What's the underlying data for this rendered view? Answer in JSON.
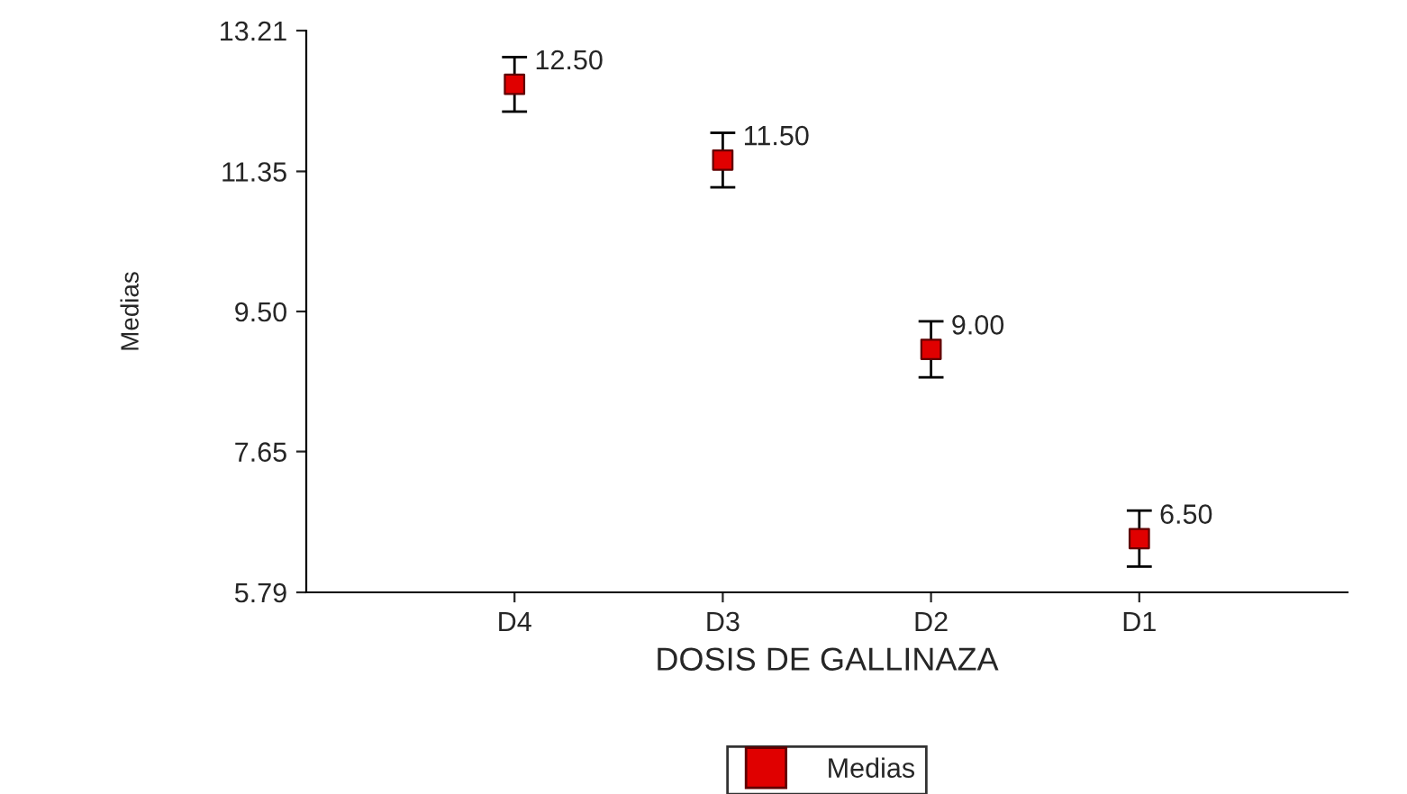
{
  "chart_data": {
    "type": "scatter",
    "xlabel": "DOSIS DE GALLINAZA",
    "ylabel": "Medias",
    "categories": [
      "D4",
      "D3",
      "D2",
      "D1"
    ],
    "series": [
      {
        "name": "Medias",
        "color": "#e00000",
        "values": [
          12.5,
          11.5,
          9.0,
          6.5
        ],
        "errors": [
          0.36,
          0.36,
          0.37,
          0.37
        ],
        "value_labels": [
          "12.50",
          "11.50",
          "9.00",
          "6.50"
        ]
      }
    ],
    "ylim": [
      5.79,
      13.21
    ],
    "yticks": [
      {
        "value": 5.79,
        "label": "5.79"
      },
      {
        "value": 7.65,
        "label": "7.65"
      },
      {
        "value": 9.5,
        "label": "9.50"
      },
      {
        "value": 11.35,
        "label": "11.35"
      },
      {
        "value": 13.21,
        "label": "13.21"
      }
    ],
    "marker": "square",
    "legend": "bottom",
    "grid": false
  }
}
